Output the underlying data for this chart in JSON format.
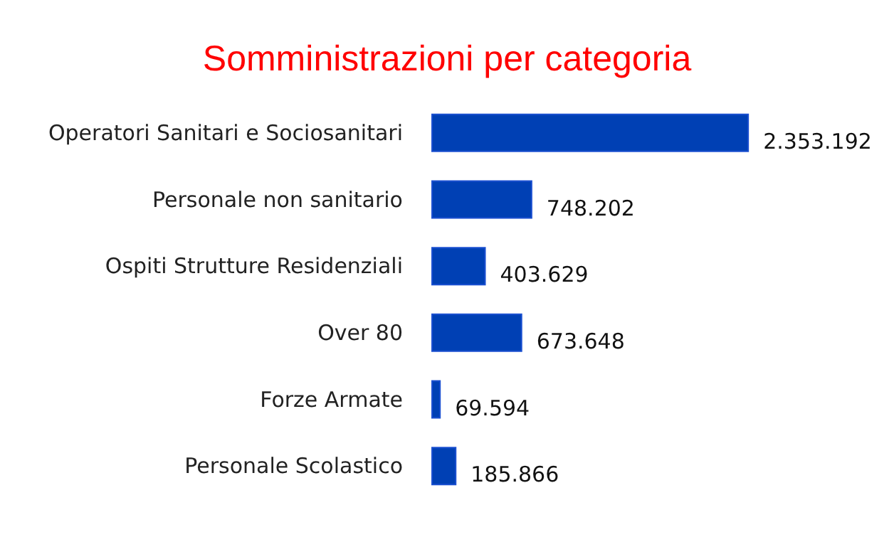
{
  "chart_data": {
    "type": "bar",
    "orientation": "horizontal",
    "title": "Somministrazioni per categoria",
    "categories": [
      "Operatori Sanitari e Sociosanitari",
      "Personale non sanitario",
      "Ospiti Strutture Residenziali",
      "Over 80",
      "Forze Armate",
      "Personale Scolastico"
    ],
    "values": [
      2353192,
      748202,
      403629,
      673648,
      69594,
      185866
    ],
    "value_labels": [
      "2.353.192",
      "748.202",
      "403.629",
      "673.648",
      "69.594",
      "185.866"
    ],
    "color": "#0040b4"
  }
}
